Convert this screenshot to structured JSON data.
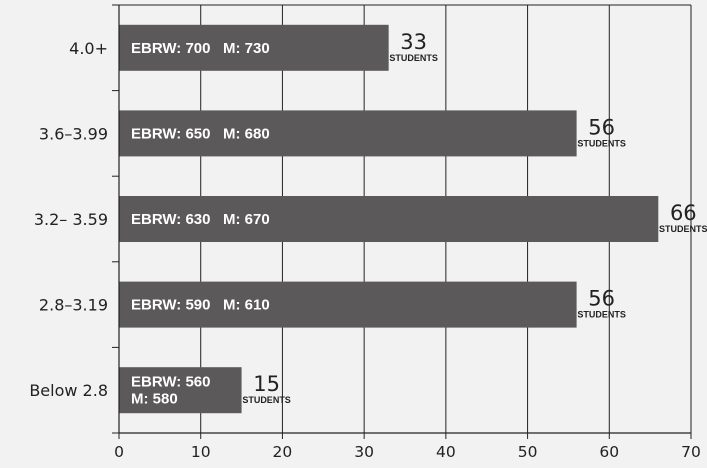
{
  "chart_data": {
    "type": "bar",
    "orientation": "horizontal",
    "categories": [
      "4.0+",
      "3.6–3.99",
      "3.2– 3.59",
      "2.8–3.19",
      "Below 2.8"
    ],
    "values": [
      33,
      56,
      66,
      56,
      15
    ],
    "value_unit_label": "STUDENTS",
    "bar_labels": [
      [
        "EBRW: 700   M: 730"
      ],
      [
        "EBRW: 650   M: 680"
      ],
      [
        "EBRW: 630   M: 670"
      ],
      [
        "EBRW: 590   M: 610"
      ],
      [
        "EBRW: 560",
        "M: 580"
      ]
    ],
    "xticks": [
      0,
      10,
      20,
      30,
      40,
      50,
      60,
      70
    ],
    "xlim": [
      0,
      70
    ],
    "grid": "vertical",
    "colors": {
      "bar": "#5b5959",
      "grid": "#222222",
      "background": "#f2f2f2"
    }
  }
}
